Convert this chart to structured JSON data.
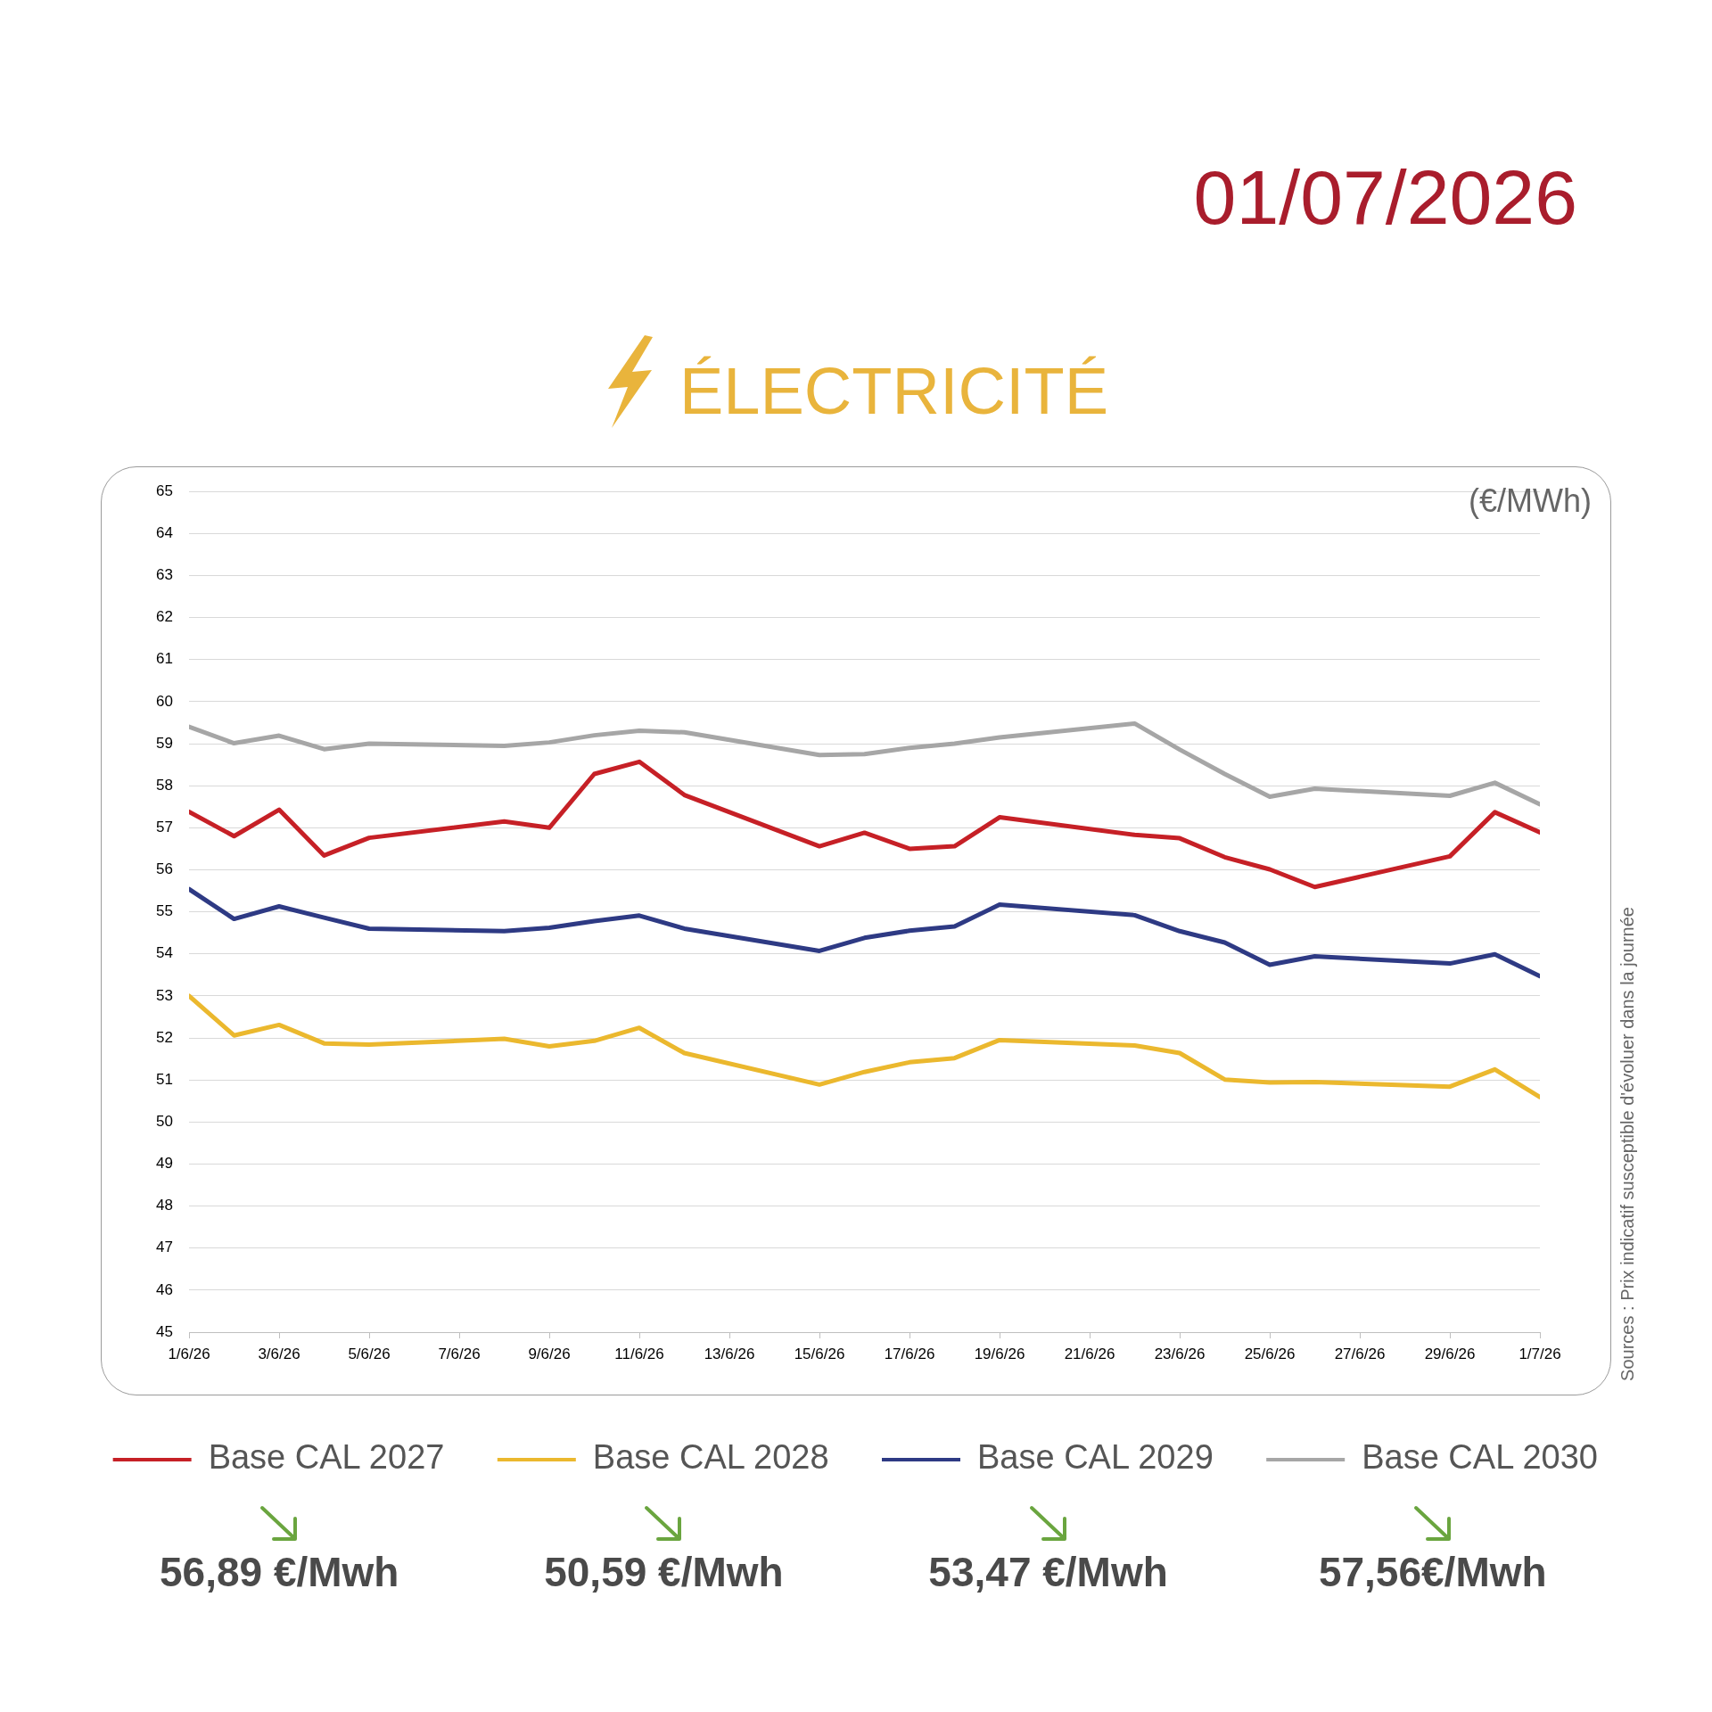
{
  "chart_data": {
    "type": "line",
    "title": "ÉLECTRICITÉ",
    "subtitle": "01/07/2026",
    "ylabel": "(€/MWh)",
    "x": [
      "2026-06-01",
      "2026-06-02",
      "2026-06-03",
      "2026-06-04",
      "2026-06-05",
      "2026-06-08",
      "2026-06-09",
      "2026-06-10",
      "2026-06-11",
      "2026-06-12",
      "2026-06-15",
      "2026-06-16",
      "2026-06-17",
      "2026-06-18",
      "2026-06-19",
      "2026-06-22",
      "2026-06-23",
      "2026-06-24",
      "2026-06-25",
      "2026-06-26",
      "2026-06-29",
      "2026-06-30",
      "2026-07-01"
    ],
    "series": [
      {
        "name": "Base CAL 2027",
        "color": "#c62026",
        "values": [
          57.38,
          56.8,
          57.43,
          56.34,
          56.76,
          57.15,
          57.0,
          58.28,
          58.57,
          57.78,
          56.56,
          56.88,
          56.5,
          56.56,
          57.25,
          56.83,
          56.75,
          56.3,
          56.01,
          55.59,
          56.32,
          57.37,
          56.89
        ]
      },
      {
        "name": "Base CAL 2028",
        "color": "#ebb82e",
        "values": [
          53.0,
          52.06,
          52.31,
          51.87,
          51.84,
          51.98,
          51.8,
          51.93,
          52.24,
          51.64,
          50.89,
          51.19,
          51.42,
          51.52,
          51.95,
          51.82,
          51.64,
          51.01,
          50.94,
          50.95,
          50.84,
          51.25,
          50.59
        ]
      },
      {
        "name": "Base CAL 2029",
        "color": "#2e3a84",
        "values": [
          55.54,
          54.83,
          55.13,
          54.86,
          54.6,
          54.54,
          54.62,
          54.78,
          54.91,
          54.6,
          54.07,
          54.38,
          54.55,
          54.65,
          55.17,
          54.92,
          54.54,
          54.27,
          53.74,
          53.94,
          53.77,
          53.99,
          53.47
        ]
      },
      {
        "name": "Base CAL 2030",
        "color": "#a6a6a6",
        "values": [
          59.4,
          59.01,
          59.19,
          58.87,
          59.0,
          58.95,
          59.03,
          59.2,
          59.31,
          59.27,
          58.73,
          58.75,
          58.9,
          59.0,
          59.15,
          59.48,
          58.86,
          58.28,
          57.74,
          57.93,
          57.76,
          58.07,
          57.56
        ]
      }
    ],
    "xlim": [
      "2026-06-01",
      "2026-07-01"
    ],
    "xticks": [
      {
        "value": "2026-06-01",
        "label": "1/6/26"
      },
      {
        "value": "2026-06-03",
        "label": "3/6/26"
      },
      {
        "value": "2026-06-05",
        "label": "5/6/26"
      },
      {
        "value": "2026-06-07",
        "label": "7/6/26"
      },
      {
        "value": "2026-06-09",
        "label": "9/6/26"
      },
      {
        "value": "2026-06-11",
        "label": "11/6/26"
      },
      {
        "value": "2026-06-13",
        "label": "13/6/26"
      },
      {
        "value": "2026-06-15",
        "label": "15/6/26"
      },
      {
        "value": "2026-06-17",
        "label": "17/6/26"
      },
      {
        "value": "2026-06-19",
        "label": "19/6/26"
      },
      {
        "value": "2026-06-21",
        "label": "21/6/26"
      },
      {
        "value": "2026-06-23",
        "label": "23/6/26"
      },
      {
        "value": "2026-06-25",
        "label": "25/6/26"
      },
      {
        "value": "2026-06-27",
        "label": "27/6/26"
      },
      {
        "value": "2026-06-29",
        "label": "29/6/26"
      },
      {
        "value": "2026-07-01",
        "label": "1/7/26"
      }
    ],
    "ylim": [
      45,
      65
    ],
    "yticks": [
      45,
      46,
      47,
      48,
      49,
      50,
      51,
      52,
      53,
      54,
      55,
      56,
      57,
      58,
      59,
      60,
      61,
      62,
      63,
      64,
      65
    ],
    "grid": "y",
    "legend": "bottom",
    "annotations": [
      "Sources : Prix indicatif susceptible d'évoluer dans la journée",
      "56,89 €/Mwh",
      "50,59 €/Mwh",
      "53,47 €/Mwh",
      "57,56€/Mwh"
    ]
  }
}
